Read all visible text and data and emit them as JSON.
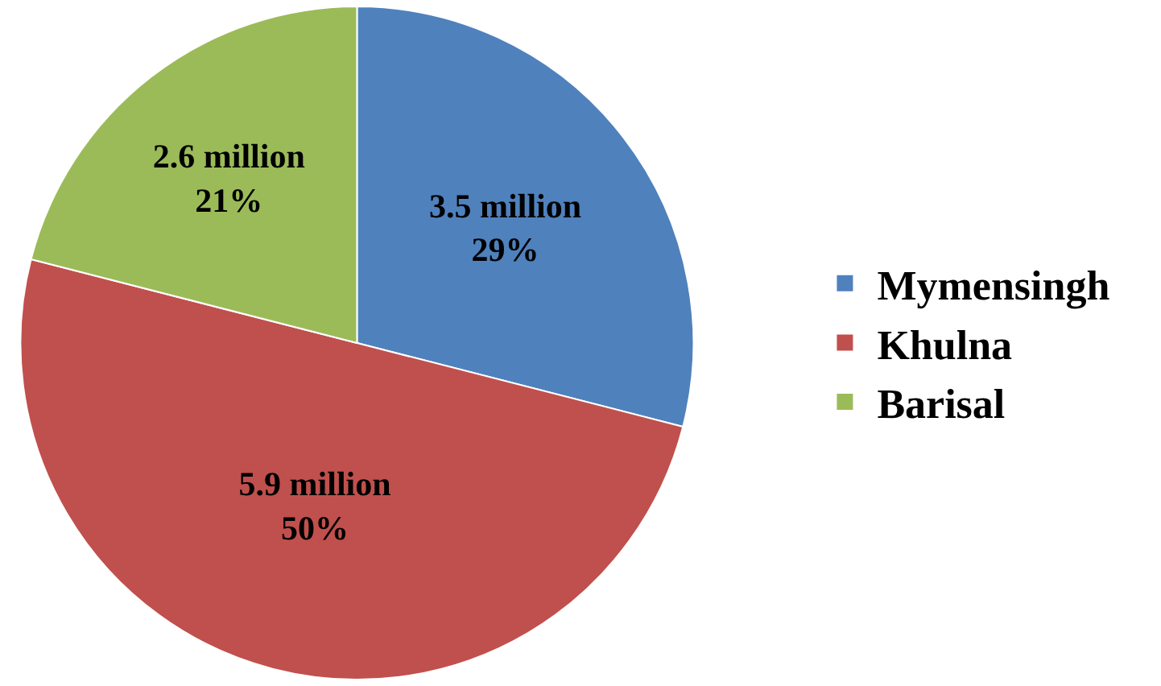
{
  "chart_data": {
    "type": "pie",
    "categories": [
      "Mymensingh",
      "Khulna",
      "Barisal"
    ],
    "values": [
      29,
      50,
      21
    ],
    "colors": [
      "#4f81bd",
      "#c0504d",
      "#9bbb59"
    ],
    "value_labels": [
      "3.5 million\n29%",
      "5.9 million\n50%",
      "2.6 million\n21%"
    ],
    "legend": "right"
  }
}
